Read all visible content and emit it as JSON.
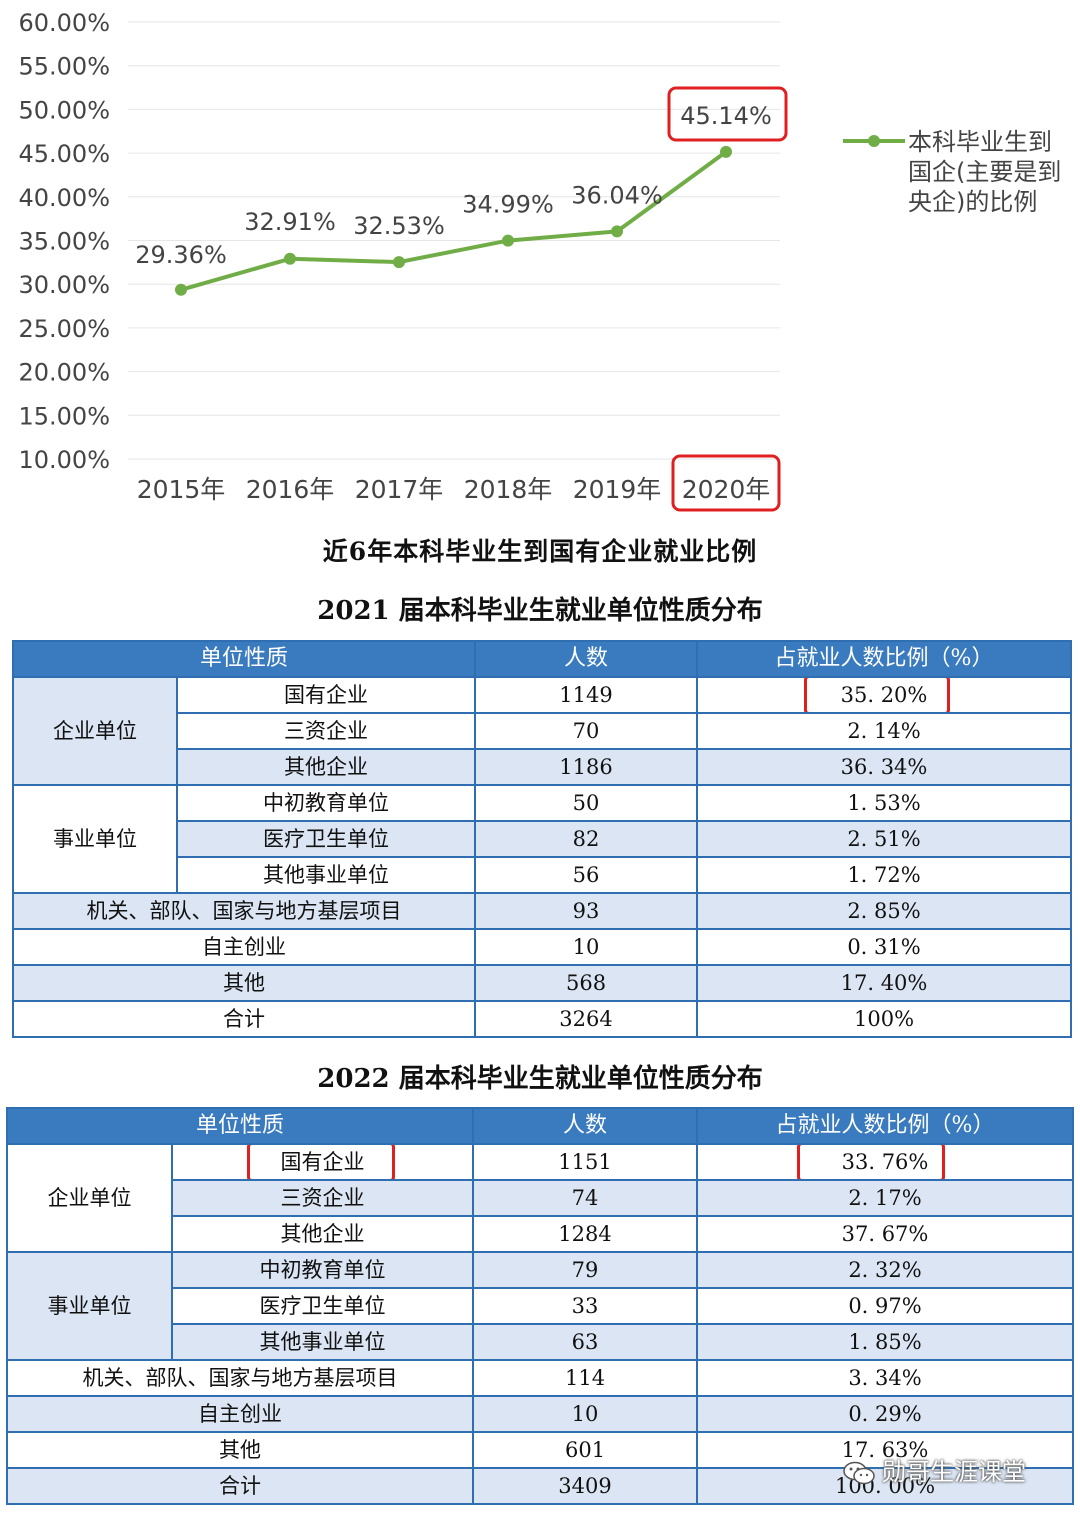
{
  "chart_data": {
    "type": "line",
    "x": [
      "2015年",
      "2016年",
      "2017年",
      "2018年",
      "2019年",
      "2020年"
    ],
    "series": [
      {
        "name": "本科毕业生到国企(主要是到央企)的比例",
        "values": [
          29.36,
          32.91,
          32.53,
          34.99,
          36.04,
          45.14
        ],
        "labels": [
          "29.36%",
          "32.91%",
          "32.53%",
          "34.99%",
          "36.04%",
          "45.14%"
        ],
        "color": "#70ad47"
      }
    ],
    "ylim": [
      10,
      60
    ],
    "yticks": [
      "10.00%",
      "15.00%",
      "20.00%",
      "25.00%",
      "30.00%",
      "35.00%",
      "40.00%",
      "45.00%",
      "50.00%",
      "55.00%",
      "60.00%"
    ],
    "grid": true,
    "legend": "right",
    "highlight_color": "#e02020",
    "highlighted": [
      "45.14%",
      "2020年"
    ]
  },
  "chart_caption": "近6年本科毕业生到国有企业就业比例",
  "table2021": {
    "title": "2021 届本科毕业生就业单位性质分布",
    "headers": [
      "单位性质",
      "人数",
      "占就业人数比例（%）"
    ],
    "groups": [
      {
        "name": "企业单位",
        "rows": [
          [
            "国有企业",
            "1149",
            "35. 20%"
          ],
          [
            "三资企业",
            "70",
            "2. 14%"
          ],
          [
            "其他企业",
            "1186",
            "36. 34%"
          ]
        ]
      },
      {
        "name": "事业单位",
        "rows": [
          [
            "中初教育单位",
            "50",
            "1. 53%"
          ],
          [
            "医疗卫生单位",
            "82",
            "2. 51%"
          ],
          [
            "其他事业单位",
            "56",
            "1. 72%"
          ]
        ]
      }
    ],
    "rows": [
      [
        "机关、部队、国家与地方基层项目",
        "93",
        "2. 85%"
      ],
      [
        "自主创业",
        "10",
        "0. 31%"
      ],
      [
        "其他",
        "568",
        "17. 40%"
      ],
      [
        "合计",
        "3264",
        "100%"
      ]
    ]
  },
  "table2022": {
    "title": "2022 届本科毕业生就业单位性质分布",
    "headers": [
      "单位性质",
      "人数",
      "占就业人数比例（%）"
    ],
    "groups": [
      {
        "name": "企业单位",
        "rows": [
          [
            "国有企业",
            "1151",
            "33. 76%"
          ],
          [
            "三资企业",
            "74",
            "2. 17%"
          ],
          [
            "其他企业",
            "1284",
            "37. 67%"
          ]
        ]
      },
      {
        "name": "事业单位",
        "rows": [
          [
            "中初教育单位",
            "79",
            "2. 32%"
          ],
          [
            "医疗卫生单位",
            "33",
            "0. 97%"
          ],
          [
            "其他事业单位",
            "63",
            "1. 85%"
          ]
        ]
      }
    ],
    "rows": [
      [
        "机关、部队、国家与地方基层项目",
        "114",
        "3. 34%"
      ],
      [
        "自主创业",
        "10",
        "0. 29%"
      ],
      [
        "其他",
        "601",
        "17. 63%"
      ],
      [
        "合计",
        "3409",
        "100. 00%"
      ]
    ]
  },
  "watermark": "勋哥生涯课堂"
}
